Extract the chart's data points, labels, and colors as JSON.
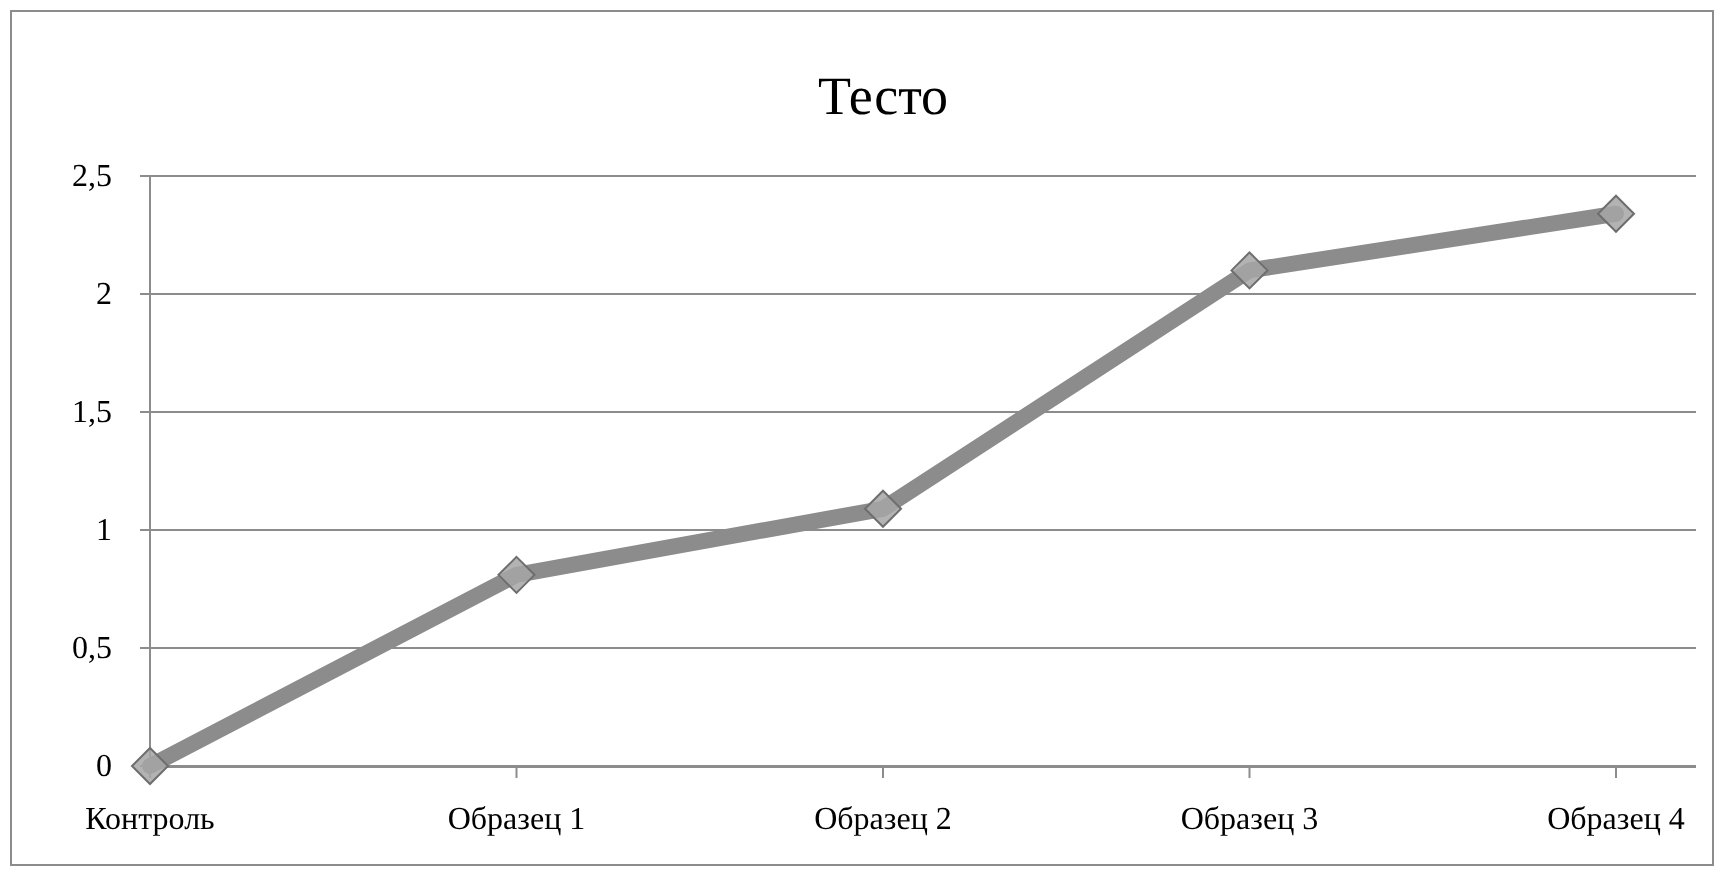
{
  "chart_data": {
    "type": "line",
    "title": "Тесто",
    "categories": [
      "Контроль",
      "Образец 1",
      "Образец 2",
      "Образец 3",
      "Образец 4"
    ],
    "series": [
      {
        "color": "#8c8c8c",
        "values": [
          0,
          0.81,
          1.09,
          2.1,
          2.34
        ]
      }
    ],
    "ylim": [
      0,
      2.5
    ],
    "yticks": [
      0,
      {
        "value": 0.5,
        "label": "0,5"
      },
      1,
      {
        "value": 1.5,
        "label": "1,5"
      },
      2,
      {
        "value": 2.5,
        "label": "2,5"
      }
    ],
    "grid": "y",
    "marker": "diamond",
    "line_style": "solid"
  }
}
